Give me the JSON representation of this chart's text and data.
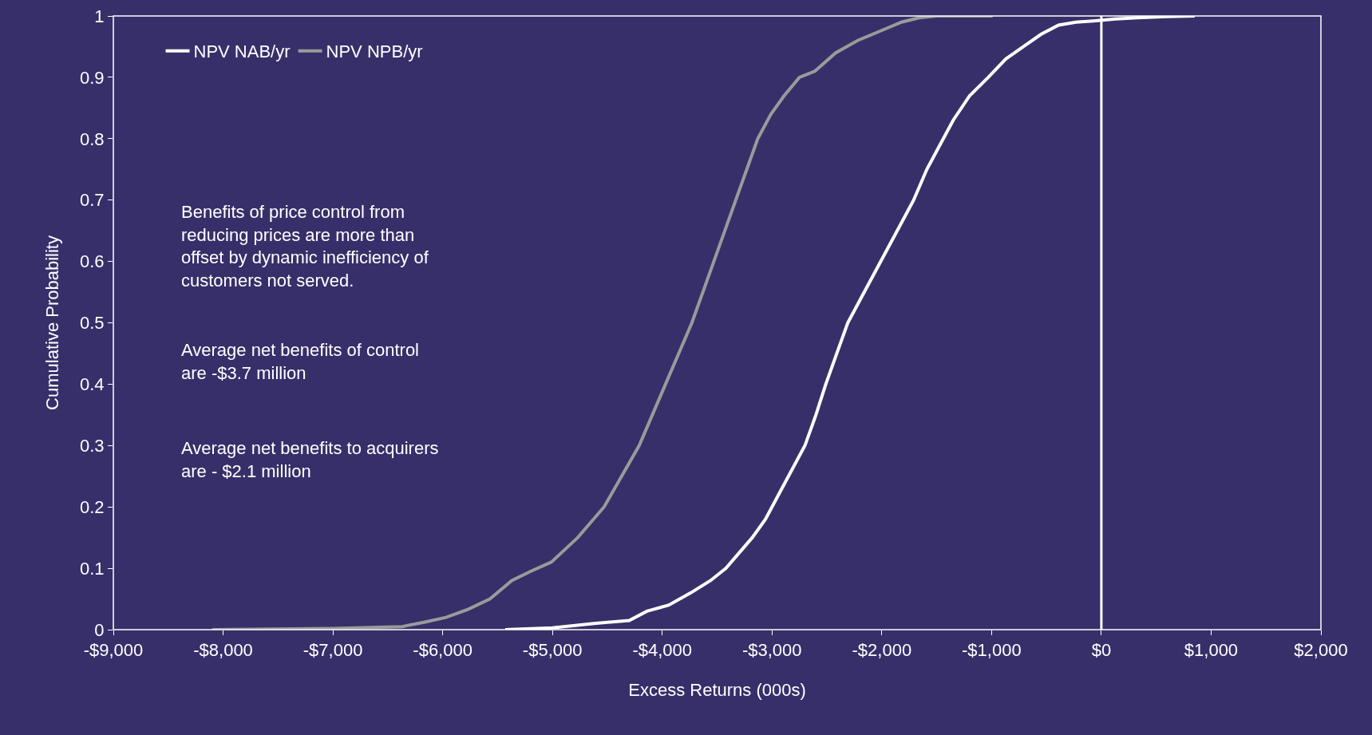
{
  "chart_data": {
    "type": "line",
    "xlabel": "Excess Returns (000s)",
    "ylabel": "Cumulative Probability",
    "xlim": [
      -9000,
      2000
    ],
    "ylim": [
      0,
      1
    ],
    "xticks": [
      {
        "value": -9000,
        "label": "-$9,000"
      },
      {
        "value": -8000,
        "label": "-$8,000"
      },
      {
        "value": -7000,
        "label": "-$7,000"
      },
      {
        "value": -6000,
        "label": "-$6,000"
      },
      {
        "value": -5000,
        "label": "-$5,000"
      },
      {
        "value": -4000,
        "label": "-$4,000"
      },
      {
        "value": -3000,
        "label": "-$3,000"
      },
      {
        "value": -2000,
        "label": "-$2,000"
      },
      {
        "value": -1000,
        "label": "-$1,000"
      },
      {
        "value": 0,
        "label": "$0"
      },
      {
        "value": 1000,
        "label": "$1,000"
      },
      {
        "value": 2000,
        "label": "$2,000"
      }
    ],
    "yticks": [
      0,
      0.1,
      0.2,
      0.3,
      0.4,
      0.5,
      0.6,
      0.7,
      0.8,
      0.9,
      1
    ],
    "legend": "top left",
    "marker": "none",
    "line_style": "solid",
    "series": [
      {
        "name": "NPV NAB/yr",
        "color": "#ffffff",
        "x": [
          -5430,
          -5000,
          -4620,
          -4300,
          -4140,
          -3940,
          -3740,
          -3560,
          -3420,
          -3300,
          -3180,
          -3060,
          -2940,
          -2820,
          -2700,
          -2600,
          -2510,
          -2410,
          -2310,
          -2190,
          -2070,
          -1950,
          -1830,
          -1710,
          -1590,
          -1470,
          -1350,
          -1200,
          -1030,
          -870,
          -710,
          -550,
          -390,
          -230,
          -70,
          130,
          330,
          600,
          850
        ],
        "values": [
          0,
          0.003,
          0.01,
          0.015,
          0.03,
          0.04,
          0.06,
          0.08,
          0.1,
          0.125,
          0.15,
          0.18,
          0.22,
          0.26,
          0.3,
          0.35,
          0.4,
          0.45,
          0.5,
          0.54,
          0.58,
          0.62,
          0.66,
          0.7,
          0.75,
          0.79,
          0.83,
          0.87,
          0.9,
          0.93,
          0.95,
          0.97,
          0.985,
          0.99,
          0.992,
          0.995,
          0.997,
          0.999,
          1
        ]
      },
      {
        "name": "NPV NPB/yr",
        "color": "#9a9a9a",
        "x": [
          -8100,
          -7000,
          -6370,
          -6170,
          -5970,
          -5770,
          -5570,
          -5370,
          -5200,
          -5010,
          -4770,
          -4530,
          -4370,
          -4210,
          -4090,
          -3970,
          -3850,
          -3730,
          -3630,
          -3530,
          -3430,
          -3330,
          -3230,
          -3130,
          -3010,
          -2890,
          -2750,
          -2610,
          -2420,
          -2220,
          -2020,
          -1820,
          -1660,
          -1500,
          -1250,
          -990
        ],
        "values": [
          0,
          0.002,
          0.005,
          0.012,
          0.02,
          0.033,
          0.05,
          0.08,
          0.095,
          0.11,
          0.15,
          0.2,
          0.25,
          0.3,
          0.35,
          0.4,
          0.45,
          0.5,
          0.55,
          0.6,
          0.65,
          0.7,
          0.75,
          0.8,
          0.84,
          0.87,
          0.9,
          0.91,
          0.94,
          0.96,
          0.975,
          0.99,
          0.997,
          1,
          1,
          1
        ]
      }
    ],
    "ref_lines": [
      {
        "axis": "x",
        "value": 0,
        "color": "#ffffff"
      }
    ],
    "annotations": [
      "Benefits of price control from\nreducing prices are more than\noffset by dynamic inefficiency of\ncustomers not served.",
      "Average net benefits of control\nare -$3.7 million",
      "Average net benefits to acquirers\nare - $2.1 million"
    ]
  }
}
